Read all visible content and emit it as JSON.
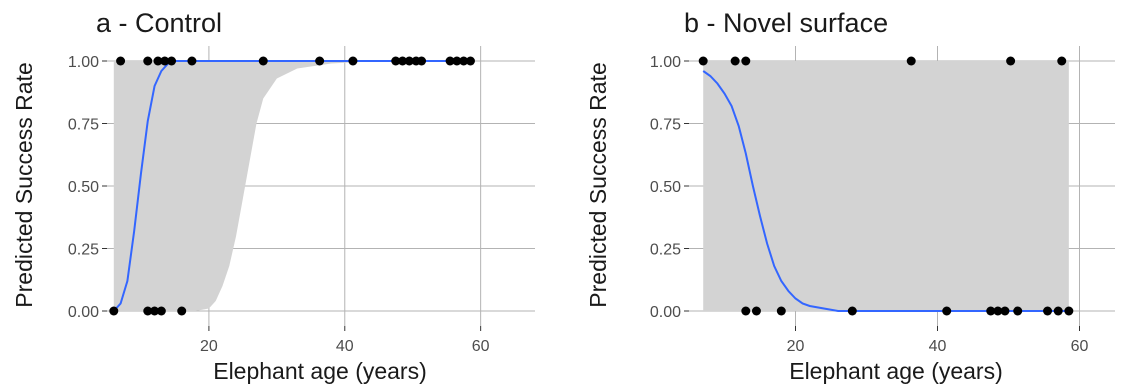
{
  "chart_data": [
    {
      "type": "scatter",
      "title": "a - Control",
      "xlabel": "Elephant age (years)",
      "ylabel": "Predicted Success Rate",
      "xlim": [
        5,
        68
      ],
      "ylim": [
        -0.06,
        1.06
      ],
      "x_ticks": [
        "20",
        "40",
        "60"
      ],
      "y_ticks": [
        "0.00",
        "0.25",
        "0.50",
        "0.75",
        "1.00"
      ],
      "grid": true,
      "colors": {
        "points": "#000000",
        "fit_line": "#3366ff",
        "confidence_band": "#d3d3d3",
        "grid": "#b3b3b3"
      },
      "observed_points": [
        {
          "x": 6.0,
          "y": 0
        },
        {
          "x": 11.0,
          "y": 0
        },
        {
          "x": 12.0,
          "y": 0
        },
        {
          "x": 13.0,
          "y": 0
        },
        {
          "x": 16.0,
          "y": 0
        },
        {
          "x": 7.0,
          "y": 1
        },
        {
          "x": 11.0,
          "y": 1
        },
        {
          "x": 12.5,
          "y": 1
        },
        {
          "x": 13.5,
          "y": 1
        },
        {
          "x": 14.5,
          "y": 1
        },
        {
          "x": 17.5,
          "y": 1
        },
        {
          "x": 28.0,
          "y": 1
        },
        {
          "x": 36.3,
          "y": 1
        },
        {
          "x": 41.2,
          "y": 1
        },
        {
          "x": 47.5,
          "y": 1
        },
        {
          "x": 48.5,
          "y": 1
        },
        {
          "x": 49.5,
          "y": 1
        },
        {
          "x": 50.5,
          "y": 1
        },
        {
          "x": 51.3,
          "y": 1
        },
        {
          "x": 55.5,
          "y": 1
        },
        {
          "x": 56.5,
          "y": 1
        },
        {
          "x": 57.5,
          "y": 1
        },
        {
          "x": 58.5,
          "y": 1
        }
      ],
      "fit_line": [
        {
          "x": 6,
          "y": 0.0
        },
        {
          "x": 7,
          "y": 0.03
        },
        {
          "x": 8,
          "y": 0.12
        },
        {
          "x": 9,
          "y": 0.32
        },
        {
          "x": 10,
          "y": 0.55
        },
        {
          "x": 11,
          "y": 0.76
        },
        {
          "x": 12,
          "y": 0.9
        },
        {
          "x": 13,
          "y": 0.96
        },
        {
          "x": 14,
          "y": 0.99
        },
        {
          "x": 15,
          "y": 1.0
        },
        {
          "x": 58.5,
          "y": 1.0
        }
      ],
      "confidence_band": [
        {
          "x": 6,
          "lower": 0.0,
          "upper": 1.0
        },
        {
          "x": 18,
          "lower": 0.0,
          "upper": 1.0
        },
        {
          "x": 20,
          "lower": 0.01,
          "upper": 1.0
        },
        {
          "x": 21,
          "lower": 0.04,
          "upper": 1.0
        },
        {
          "x": 22,
          "lower": 0.1,
          "upper": 1.0
        },
        {
          "x": 23,
          "lower": 0.18,
          "upper": 1.0
        },
        {
          "x": 24,
          "lower": 0.3,
          "upper": 1.0
        },
        {
          "x": 25,
          "lower": 0.45,
          "upper": 1.0
        },
        {
          "x": 26,
          "lower": 0.6,
          "upper": 1.0
        },
        {
          "x": 27,
          "lower": 0.75,
          "upper": 1.0
        },
        {
          "x": 28,
          "lower": 0.85,
          "upper": 1.0
        },
        {
          "x": 30,
          "lower": 0.93,
          "upper": 1.0
        },
        {
          "x": 33,
          "lower": 0.97,
          "upper": 1.0
        },
        {
          "x": 38,
          "lower": 0.99,
          "upper": 1.0
        },
        {
          "x": 45,
          "lower": 1.0,
          "upper": 1.0
        },
        {
          "x": 58.5,
          "lower": 1.0,
          "upper": 1.0
        }
      ]
    },
    {
      "type": "scatter",
      "title": "b - Novel surface",
      "xlabel": "Elephant age (years)",
      "ylabel": "Predicted Success Rate",
      "xlim": [
        5,
        65
      ],
      "ylim": [
        -0.06,
        1.06
      ],
      "x_ticks": [
        "20",
        "40",
        "60"
      ],
      "y_ticks": [
        "0.00",
        "0.25",
        "0.50",
        "0.75",
        "1.00"
      ],
      "grid": true,
      "colors": {
        "points": "#000000",
        "fit_line": "#3366ff",
        "confidence_band": "#d3d3d3",
        "grid": "#b3b3b3"
      },
      "observed_points": [
        {
          "x": 7.0,
          "y": 1
        },
        {
          "x": 11.5,
          "y": 1
        },
        {
          "x": 13.0,
          "y": 1
        },
        {
          "x": 36.3,
          "y": 1
        },
        {
          "x": 50.3,
          "y": 1
        },
        {
          "x": 57.5,
          "y": 1
        },
        {
          "x": 13.0,
          "y": 0
        },
        {
          "x": 14.5,
          "y": 0
        },
        {
          "x": 18.0,
          "y": 0
        },
        {
          "x": 28.0,
          "y": 0
        },
        {
          "x": 41.3,
          "y": 0
        },
        {
          "x": 47.5,
          "y": 0
        },
        {
          "x": 48.5,
          "y": 0
        },
        {
          "x": 49.5,
          "y": 0
        },
        {
          "x": 51.3,
          "y": 0
        },
        {
          "x": 55.5,
          "y": 0
        },
        {
          "x": 57.0,
          "y": 0
        },
        {
          "x": 58.5,
          "y": 0
        }
      ],
      "fit_line": [
        {
          "x": 7,
          "y": 0.96
        },
        {
          "x": 8,
          "y": 0.94
        },
        {
          "x": 9,
          "y": 0.91
        },
        {
          "x": 10,
          "y": 0.87
        },
        {
          "x": 11,
          "y": 0.82
        },
        {
          "x": 12,
          "y": 0.74
        },
        {
          "x": 13,
          "y": 0.63
        },
        {
          "x": 14,
          "y": 0.5
        },
        {
          "x": 15,
          "y": 0.38
        },
        {
          "x": 16,
          "y": 0.27
        },
        {
          "x": 17,
          "y": 0.18
        },
        {
          "x": 18,
          "y": 0.12
        },
        {
          "x": 19,
          "y": 0.08
        },
        {
          "x": 20,
          "y": 0.05
        },
        {
          "x": 21,
          "y": 0.03
        },
        {
          "x": 22,
          "y": 0.02
        },
        {
          "x": 24,
          "y": 0.01
        },
        {
          "x": 26,
          "y": 0.0
        },
        {
          "x": 58.5,
          "y": 0.0
        }
      ],
      "confidence_band": [
        {
          "x": 7,
          "lower": 0.0,
          "upper": 1.0
        },
        {
          "x": 58.5,
          "lower": 0.0,
          "upper": 1.0
        }
      ]
    }
  ]
}
